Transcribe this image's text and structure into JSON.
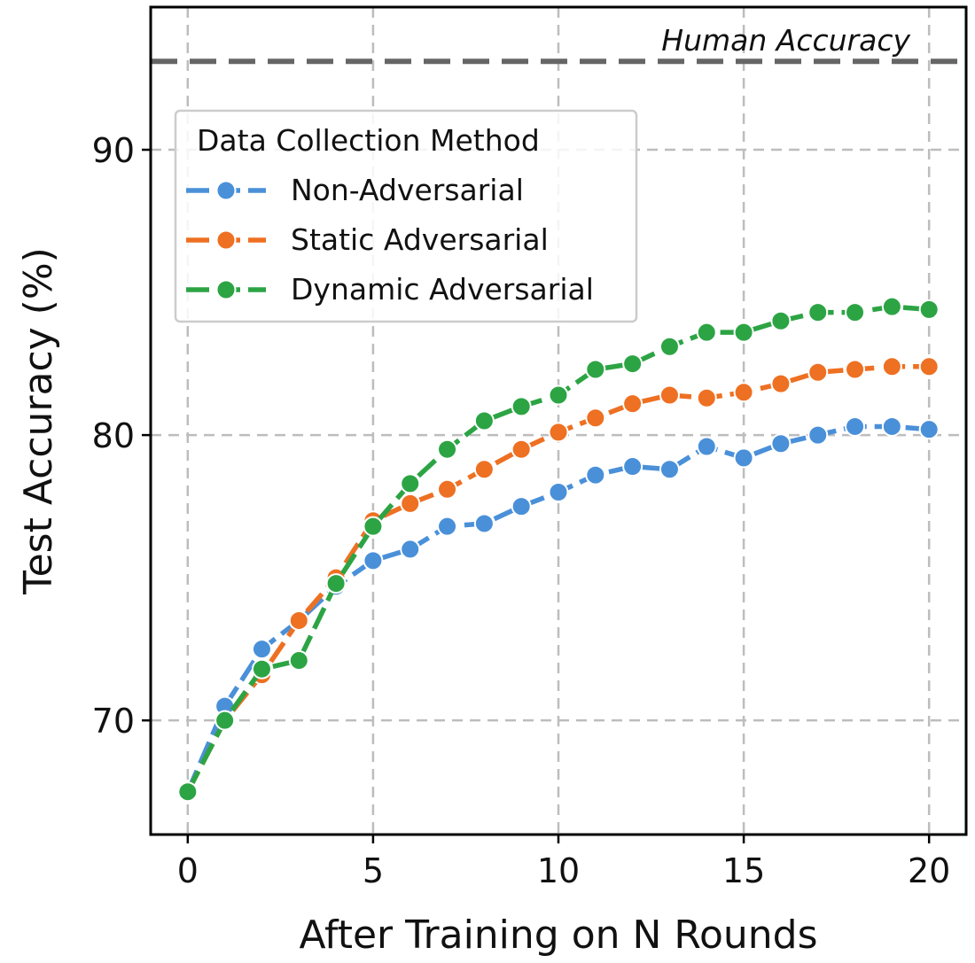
{
  "chart_data": {
    "type": "line",
    "title": "",
    "xlabel": "After Training on N Rounds",
    "ylabel": "Test Accuracy (%)",
    "xlim": [
      -1,
      21
    ],
    "ylim": [
      66,
      95
    ],
    "xticks": [
      0,
      5,
      10,
      15,
      20
    ],
    "yticks": [
      70,
      80,
      90
    ],
    "grid": true,
    "legend": {
      "title": "Data Collection Method",
      "placement": "upper-left"
    },
    "reference_line": {
      "label": "Human Accuracy",
      "y": 93.1
    },
    "x": [
      0,
      1,
      2,
      3,
      4,
      5,
      6,
      7,
      8,
      9,
      10,
      11,
      12,
      13,
      14,
      15,
      16,
      17,
      18,
      19,
      20
    ],
    "series": [
      {
        "name": "Non-Adversarial",
        "color": "#4a90d9",
        "values": [
          67.5,
          70.5,
          72.5,
          73.5,
          74.7,
          75.6,
          76.0,
          76.8,
          76.9,
          77.5,
          78.0,
          78.6,
          78.9,
          78.8,
          79.6,
          79.2,
          79.7,
          80.0,
          80.3,
          80.3,
          80.2
        ]
      },
      {
        "name": "Static Adversarial",
        "color": "#ee7022",
        "values": [
          67.5,
          70.0,
          71.6,
          73.5,
          75.0,
          77.0,
          77.6,
          78.1,
          78.8,
          79.5,
          80.1,
          80.6,
          81.1,
          81.4,
          81.3,
          81.5,
          81.8,
          82.2,
          82.3,
          82.4,
          82.4
        ]
      },
      {
        "name": "Dynamic Adversarial",
        "color": "#2ca444",
        "values": [
          67.5,
          70.0,
          71.8,
          72.1,
          74.8,
          76.8,
          78.3,
          79.5,
          80.5,
          81.0,
          81.4,
          82.3,
          82.5,
          83.1,
          83.6,
          83.6,
          84.0,
          84.3,
          84.3,
          84.5,
          84.4
        ]
      }
    ]
  }
}
